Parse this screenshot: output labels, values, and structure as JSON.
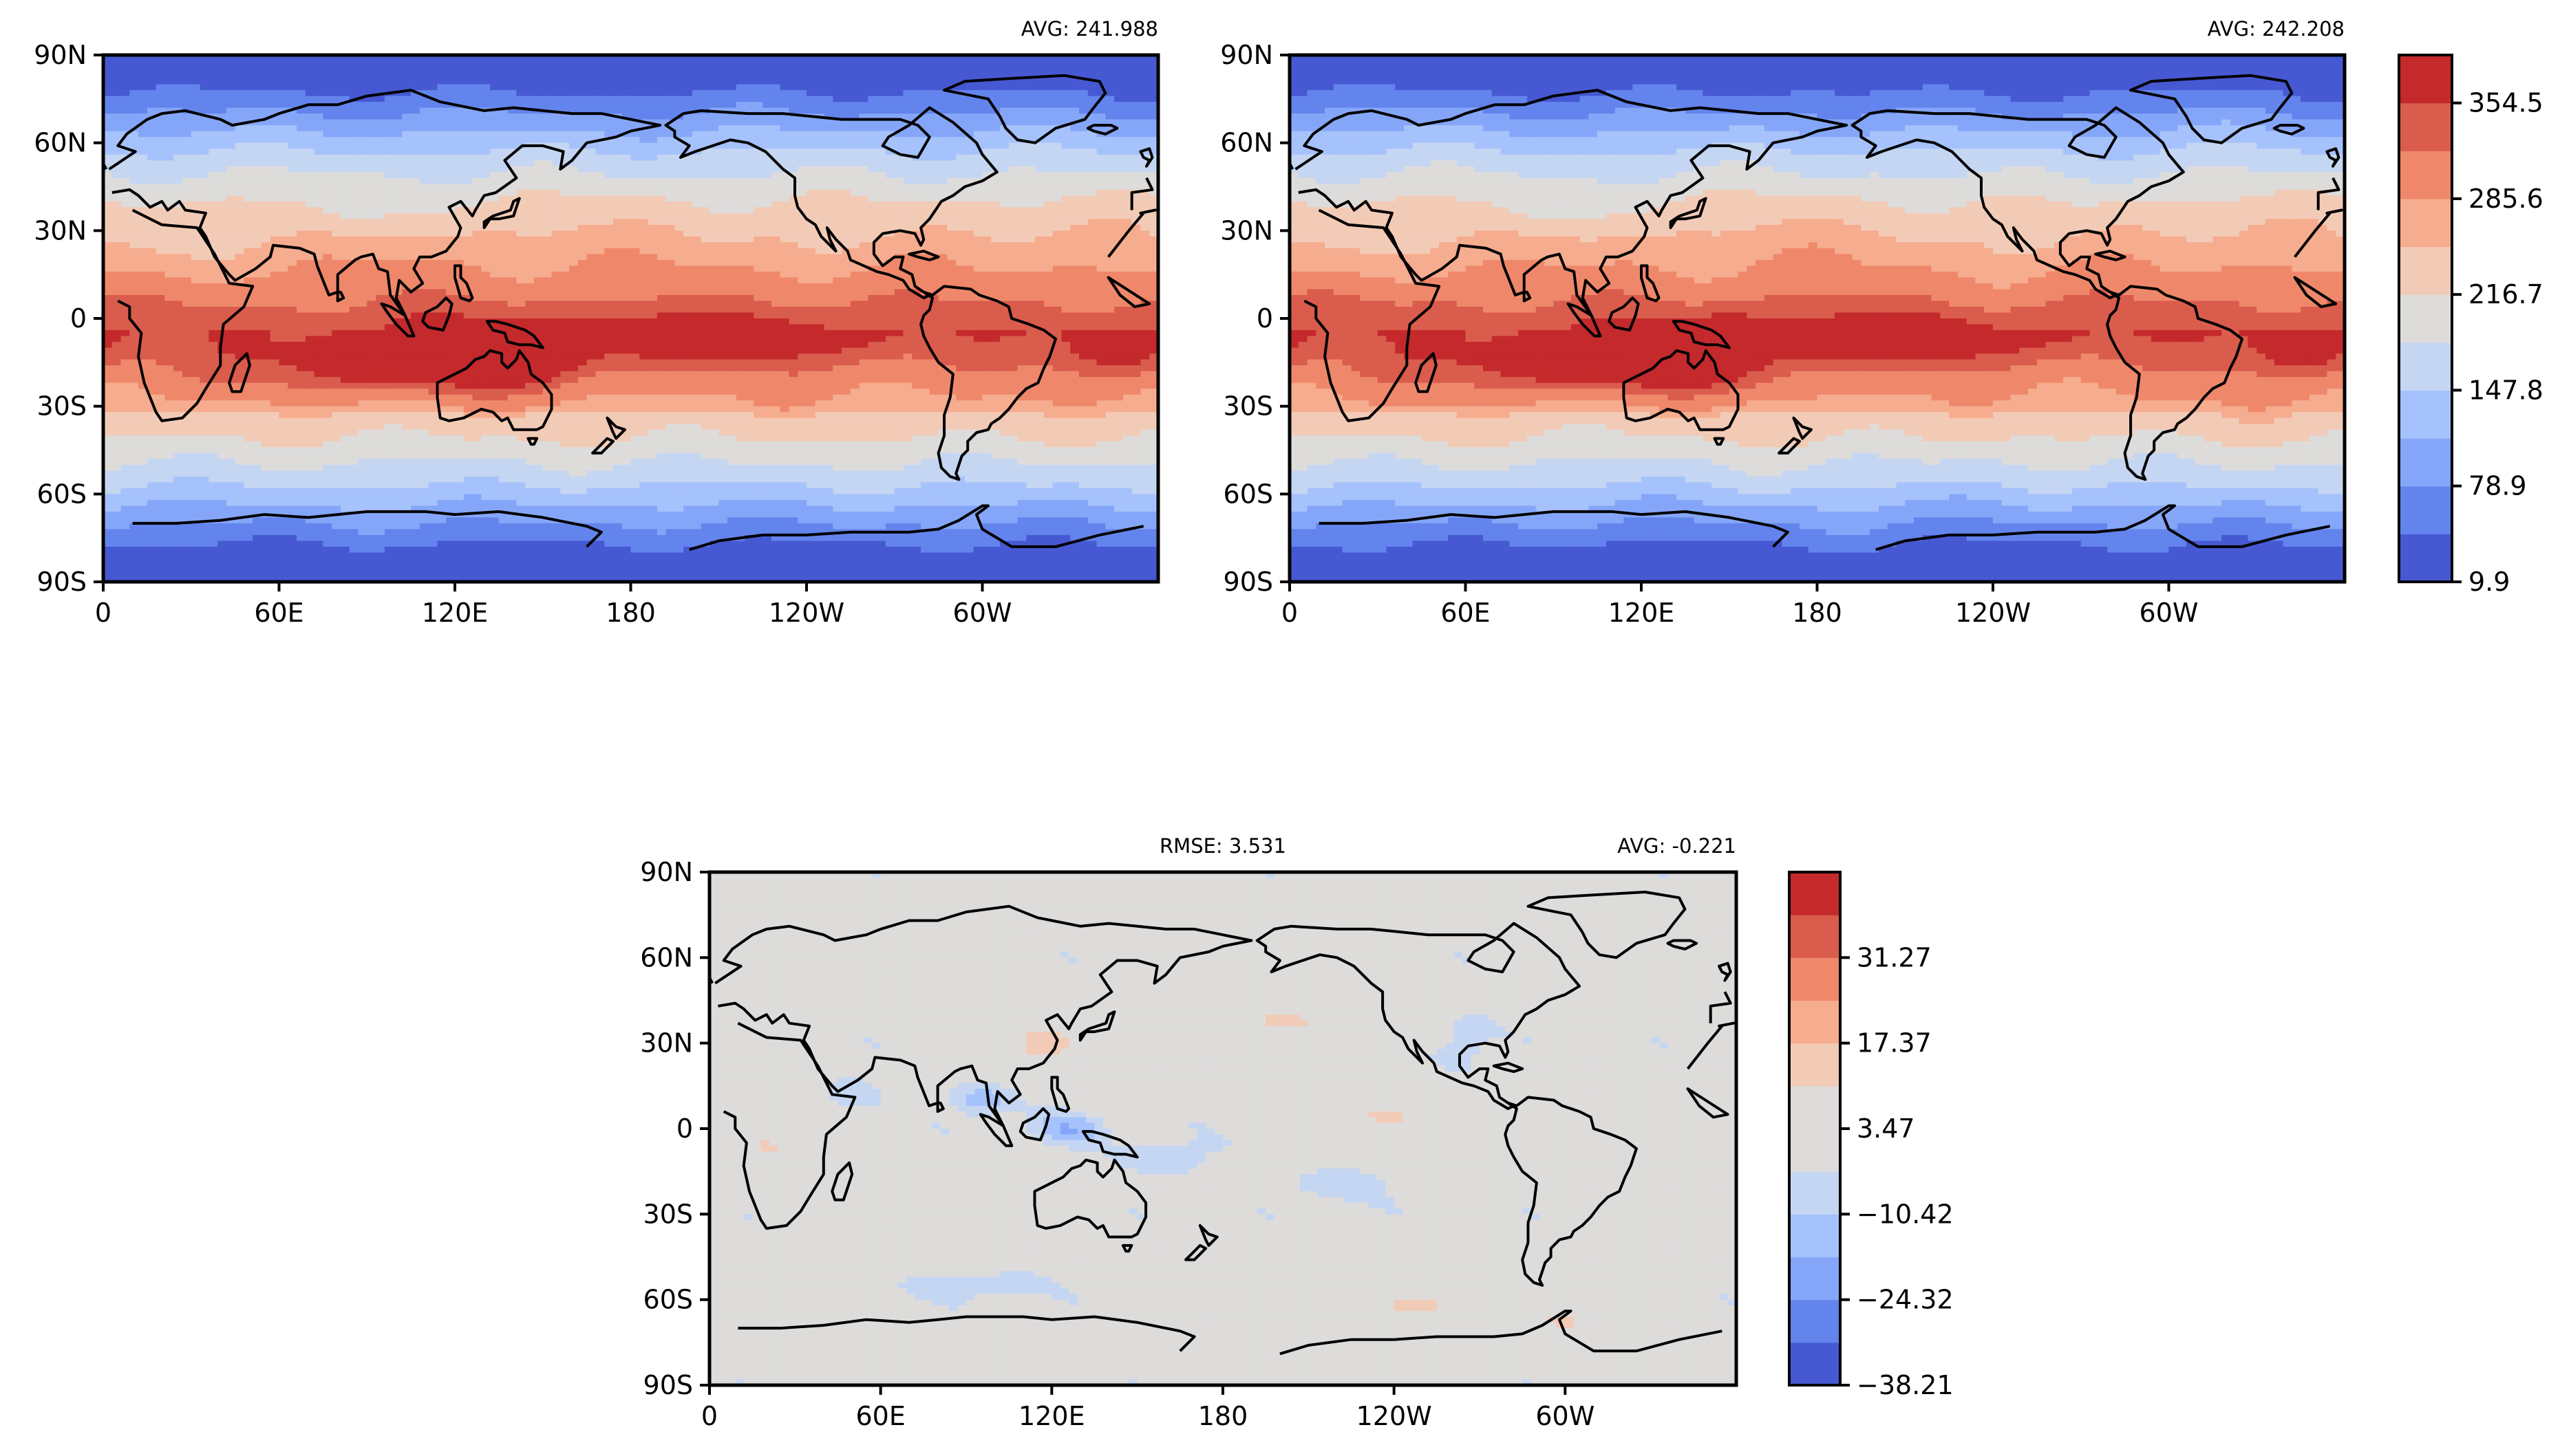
{
  "chart_data": [
    {
      "type": "heatmap",
      "panel": "top-left map",
      "title_right": "AVG: 241.988",
      "xticks": [
        "0",
        "60E",
        "120E",
        "180",
        "120W",
        "60W"
      ],
      "yticks": [
        "90N",
        "60N",
        "30N",
        "0",
        "30S",
        "60S",
        "90S"
      ],
      "xlim": [
        0,
        360
      ],
      "ylim": [
        -90,
        90
      ],
      "fields": {
        "min": 9.9,
        "max": 389.0,
        "global_average": 241.988,
        "pattern": "zonal bands: low near poles, high in tropics; maxima over Indian Ocean, Maritime Continent, tropical Pacific"
      }
    },
    {
      "type": "heatmap",
      "panel": "top-right map",
      "title_right": "AVG: 242.208",
      "xticks": [
        "0",
        "60E",
        "120E",
        "180",
        "120W",
        "60W"
      ],
      "yticks": [
        "90N",
        "60N",
        "30N",
        "0",
        "30S",
        "60S",
        "90S"
      ],
      "xlim": [
        0,
        360
      ],
      "ylim": [
        -90,
        90
      ],
      "fields": {
        "min": 9.9,
        "max": 389.0,
        "global_average": 242.208,
        "pattern": "zonal bands: low near poles, high in tropics; maxima over Indian Ocean, Maritime Continent, tropical Pacific"
      }
    },
    {
      "type": "heatmap",
      "panel": "bottom difference map",
      "title_center": "RMSE: 3.531",
      "title_right": "AVG: -0.221",
      "xticks": [
        "0",
        "60E",
        "120E",
        "180",
        "120W",
        "60W"
      ],
      "yticks": [
        "90N",
        "60N",
        "30N",
        "0",
        "30S",
        "60S",
        "90S"
      ],
      "xlim": [
        0,
        360
      ],
      "ylim": [
        -90,
        90
      ],
      "fields": {
        "min": -38.21,
        "max": 45.16,
        "global_average": -0.221,
        "rmse": 3.531,
        "pattern": "mostly near zero with small positive and negative patches"
      }
    }
  ],
  "colorbars": {
    "top": {
      "tick_labels": [
        "354.5",
        "285.6",
        "216.7",
        "147.8",
        "78.9",
        "9.9"
      ],
      "ticks": [
        354.5,
        285.6,
        216.7,
        147.8,
        78.9,
        9.9
      ],
      "levels": 11,
      "colors": [
        "#4659d2",
        "#6384ec",
        "#85a6f8",
        "#a6c2fc",
        "#c5d6f2",
        "#dddcdb",
        "#f2cbb7",
        "#f6ac8e",
        "#ef886b",
        "#da5c4c",
        "#c4292c"
      ]
    },
    "bottom": {
      "tick_labels": [
        "31.27",
        "17.37",
        "3.47",
        "−10.42",
        "−24.32",
        "−38.21"
      ],
      "ticks": [
        31.27,
        17.37,
        3.47,
        -10.42,
        -24.32,
        -38.21
      ],
      "levels": 12,
      "colors": [
        "#4659d2",
        "#6384ec",
        "#85a6f8",
        "#a6c2fc",
        "#c5d6f2",
        "#dddcdb",
        "#dddcdb",
        "#f2cbb7",
        "#f6ac8e",
        "#ef886b",
        "#da5c4c",
        "#c4292c"
      ]
    }
  }
}
